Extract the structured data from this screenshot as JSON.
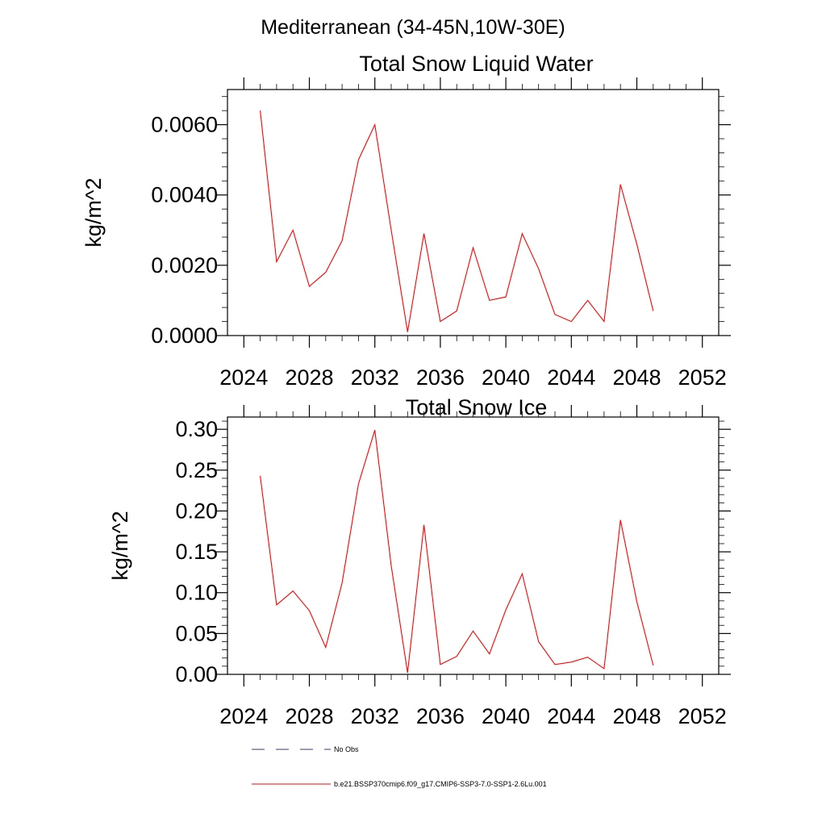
{
  "figure": {
    "title": "Mediterranean (34-45N,10W-30E)"
  },
  "chart_data": [
    {
      "type": "line",
      "title": "Total Snow Liquid Water",
      "xlabel": "",
      "ylabel": "kg/m^2",
      "xlim": [
        2023,
        2053
      ],
      "ylim": [
        0.0,
        0.007
      ],
      "xticks": [
        "2024",
        "2028",
        "2032",
        "2036",
        "2040",
        "2044",
        "2048",
        "2052"
      ],
      "yticks": [
        "0.0000",
        "0.0020",
        "0.0040",
        "0.0060"
      ],
      "grid": false,
      "series": [
        {
          "name": "b.e21.BSSP370cmip6.f09_g17.CMIP6-SSP3-7.0-SSP1-2.6Lu.001",
          "color": "#ff0000",
          "x": [
            2025,
            2026,
            2027,
            2028,
            2029,
            2030,
            2031,
            2032,
            2033,
            2034,
            2035,
            2036,
            2037,
            2038,
            2039,
            2040,
            2041,
            2042,
            2043,
            2044,
            2045,
            2046,
            2047,
            2048,
            2049
          ],
          "y": [
            0.0064,
            0.0021,
            0.003,
            0.0014,
            0.0018,
            0.0027,
            0.005,
            0.006,
            0.003,
            0.0001,
            0.0029,
            0.0004,
            0.0007,
            0.0025,
            0.001,
            0.0011,
            0.0029,
            0.0019,
            0.0006,
            0.0004,
            0.001,
            0.0004,
            0.0043,
            0.0026,
            0.0007
          ]
        }
      ]
    },
    {
      "type": "line",
      "title": "Total Snow Ice",
      "xlabel": "",
      "ylabel": "kg/m^2",
      "xlim": [
        2023,
        2053
      ],
      "ylim": [
        0.0,
        0.315
      ],
      "xticks": [
        "2024",
        "2028",
        "2032",
        "2036",
        "2040",
        "2044",
        "2048",
        "2052"
      ],
      "yticks": [
        "0.00",
        "0.05",
        "0.10",
        "0.15",
        "0.20",
        "0.25",
        "0.30"
      ],
      "grid": false,
      "series": [
        {
          "name": "b.e21.BSSP370cmip6.f09_g17.CMIP6-SSP3-7.0-SSP1-2.6Lu.001",
          "color": "#ff0000",
          "x": [
            2025,
            2026,
            2027,
            2028,
            2029,
            2030,
            2031,
            2032,
            2033,
            2034,
            2035,
            2036,
            2037,
            2038,
            2039,
            2040,
            2041,
            2042,
            2043,
            2044,
            2045,
            2046,
            2047,
            2048,
            2049
          ],
          "y": [
            0.243,
            0.085,
            0.102,
            0.078,
            0.033,
            0.112,
            0.233,
            0.299,
            0.133,
            0.002,
            0.183,
            0.012,
            0.022,
            0.053,
            0.025,
            0.079,
            0.123,
            0.04,
            0.012,
            0.015,
            0.021,
            0.007,
            0.189,
            0.089,
            0.011
          ]
        }
      ]
    }
  ],
  "legend": {
    "placement": "bottom",
    "items": [
      {
        "label": "No Obs",
        "style": "dashed",
        "color": "#3a3a6a"
      },
      {
        "label": "b.e21.BSSP370cmip6.f09_g17.CMIP6-SSP3-7.0-SSP1-2.6Lu.001",
        "style": "solid",
        "color": "#ff0000"
      }
    ]
  }
}
